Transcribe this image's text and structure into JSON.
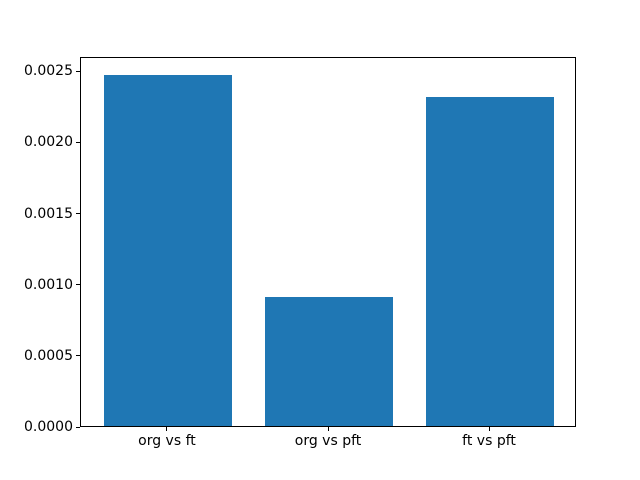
{
  "figure": {
    "background": "#ffffff",
    "frame_color": "#000000",
    "tick_color": "#000000",
    "label_color": "#000000"
  },
  "chart_data": {
    "type": "bar",
    "title": "",
    "xlabel": "",
    "ylabel": "",
    "categories": [
      "org vs ft",
      "org vs pft",
      "ft vs pft"
    ],
    "values": [
      0.00247,
      0.00091,
      0.00231
    ],
    "bar_color": "#1f77b4",
    "bar_width_fraction": 0.8,
    "ylim": [
      0,
      0.0026
    ],
    "xlim": [
      -0.54,
      2.54
    ],
    "yticks": [
      0.0,
      0.0005,
      0.001,
      0.0015,
      0.002,
      0.0025
    ],
    "ytick_labels": [
      "0.0000",
      "0.0005",
      "0.0010",
      "0.0015",
      "0.0020",
      "0.0025"
    ],
    "grid": false,
    "legend": null
  }
}
